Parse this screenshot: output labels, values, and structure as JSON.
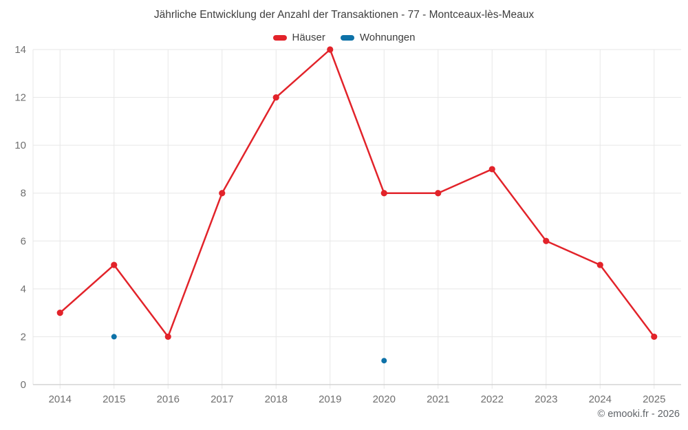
{
  "chart_data": {
    "type": "line",
    "title": "Jährliche Entwicklung der Anzahl der Transaktionen - 77 - Montceaux-lès-Meaux",
    "categories": [
      "2014",
      "2015",
      "2016",
      "2017",
      "2018",
      "2019",
      "2020",
      "2021",
      "2022",
      "2023",
      "2024",
      "2025"
    ],
    "series": [
      {
        "name": "Häuser",
        "color": "#e2232a",
        "marker_radius": 4.6,
        "values": [
          3,
          5,
          2,
          8,
          12,
          14,
          8,
          8,
          9,
          6,
          5,
          2
        ]
      },
      {
        "name": "Wohnungen",
        "color": "#0e72a8",
        "marker_radius": 4,
        "values": [
          null,
          2,
          null,
          null,
          null,
          null,
          1,
          null,
          null,
          null,
          null,
          null
        ]
      }
    ],
    "xlabel": "",
    "ylabel": "",
    "ylim": [
      0,
      14
    ],
    "yticks": [
      0,
      2,
      4,
      6,
      8,
      10,
      12,
      14
    ],
    "grid": true,
    "legend_position": "top",
    "attribution": "© emooki.fr - 2026",
    "style": {
      "grid_color": "#e7e7e7",
      "axis_color": "#cccccc",
      "tick_label_color": "#6f6f6f",
      "line_width": 2.5,
      "tick_font_size": 15
    }
  }
}
